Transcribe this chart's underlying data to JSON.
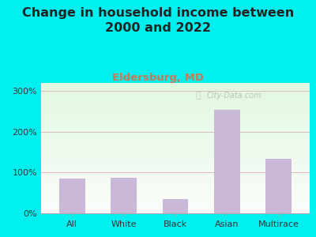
{
  "title": "Change in household income between\n2000 and 2022",
  "subtitle": "Eldersburg, MD",
  "categories": [
    "All",
    "White",
    "Black",
    "Asian",
    "Multirace"
  ],
  "values": [
    85,
    88,
    35,
    255,
    133
  ],
  "bar_color": "#c9b8d8",
  "title_fontsize": 11.5,
  "subtitle_fontsize": 9.5,
  "subtitle_color": "#cc7755",
  "background_outer": "#00f0f0",
  "grid_color": "#ddbbbb",
  "ylim": [
    0,
    320
  ],
  "yticks": [
    0,
    100,
    200,
    300
  ],
  "ytick_labels": [
    "0%",
    "100%",
    "200%",
    "300%"
  ],
  "watermark": "City-Data.com",
  "title_color": "#222222"
}
